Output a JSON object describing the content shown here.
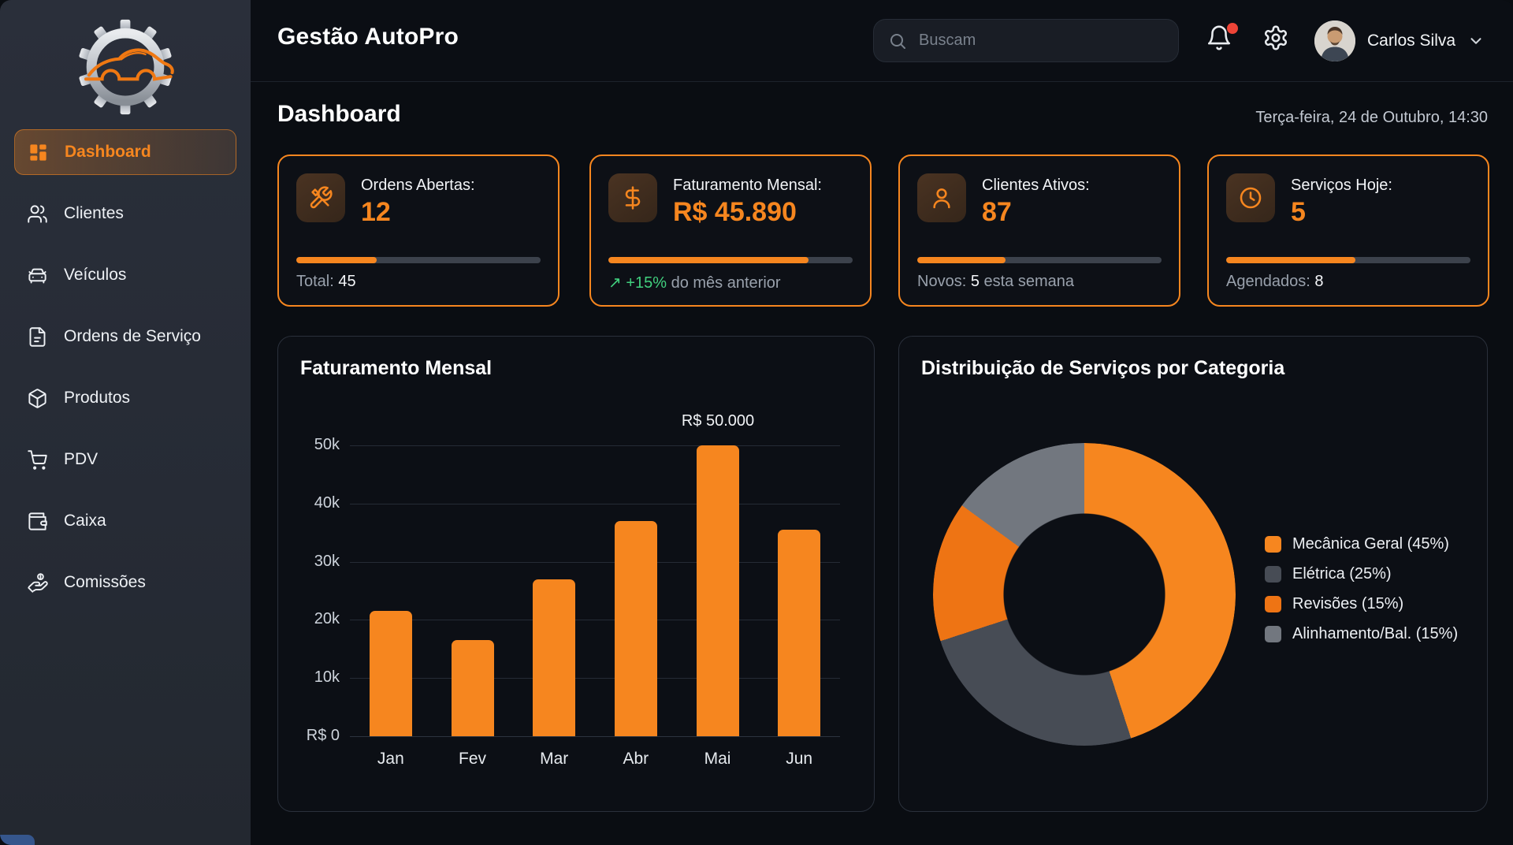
{
  "app": {
    "title": "Gestão AutoPro"
  },
  "topbar": {
    "search_placeholder": "Buscam",
    "user_name": "Carlos Silva",
    "icons": [
      "bell-icon",
      "gear-icon",
      "chevron-down-icon"
    ],
    "notification_dot_color": "#ee4437"
  },
  "sidebar": {
    "logo": "gear-car-logo",
    "items": [
      {
        "label": "Dashboard",
        "icon": "dashboard-grid-icon",
        "active": true
      },
      {
        "label": "Clientes",
        "icon": "users-icon",
        "active": false
      },
      {
        "label": "Veículos",
        "icon": "car-icon",
        "active": false
      },
      {
        "label": "Ordens de Serviço",
        "icon": "file-text-icon",
        "active": false
      },
      {
        "label": "Produtos",
        "icon": "package-icon",
        "active": false
      },
      {
        "label": "PDV",
        "icon": "shopping-cart-icon",
        "active": false
      },
      {
        "label": "Caixa",
        "icon": "wallet-icon",
        "active": false
      },
      {
        "label": "Comissões",
        "icon": "hand-coins-icon",
        "active": false
      }
    ]
  },
  "page": {
    "title": "Dashboard",
    "datetime": "Terça-feira, 24 de Outubro, 14:30"
  },
  "colors": {
    "accent_orange": "#f6861f",
    "green": "#41d07e",
    "card_border": "#f6861f",
    "sidebar_bg": "#262b35",
    "main_bg": "#0a0d12"
  },
  "stats": [
    {
      "label": "Ordens Abertas:",
      "value": "12",
      "icon": "tools-icon",
      "progress_pct": 33,
      "footer": {
        "prefix": "Total:",
        "highlight": "45",
        "suffix": ""
      }
    },
    {
      "label": "Faturamento Mensal:",
      "value": "R$ 45.890",
      "icon": "dollar-icon",
      "progress_pct": 82,
      "footer": {
        "trend": "↗ +15%",
        "suffix": "do mês anterior"
      }
    },
    {
      "label": "Clientes Ativos:",
      "value": "87",
      "icon": "user-icon",
      "progress_pct": 36,
      "footer": {
        "prefix": "Novos:",
        "highlight": "5",
        "suffix": "esta semana"
      }
    },
    {
      "label": "Serviços Hoje:",
      "value": "5",
      "icon": "clock-icon",
      "progress_pct": 53,
      "footer": {
        "prefix": "Agendados:",
        "highlight": "8",
        "suffix": ""
      }
    }
  ],
  "chart_data": [
    {
      "type": "bar",
      "title": "Faturamento Mensal",
      "categories": [
        "Jan",
        "Fev",
        "Mar",
        "Abr",
        "Mai",
        "Jun"
      ],
      "values": [
        21500,
        16500,
        27000,
        37000,
        50000,
        35500
      ],
      "xlabel": "",
      "ylabel": "R$",
      "ylim": [
        0,
        50000
      ],
      "y_ticks": [
        "50k",
        "40k",
        "30k",
        "20k",
        "10k",
        "R$ 0"
      ],
      "grid": true,
      "bar_color": "#f6861f",
      "annotation": {
        "label": "R$ 50.000",
        "category": "Mai",
        "value": 50000
      }
    },
    {
      "type": "pie",
      "donut": true,
      "title": "Distribuição de Serviços por Categoria",
      "legend_position": "right",
      "slices": [
        {
          "label": "Mecânica Geral (45%)",
          "value": 45,
          "color": "#f6861f"
        },
        {
          "label": "Elétrica (25%)",
          "value": 25,
          "color": "#474c55"
        },
        {
          "label": "Revisões (15%)",
          "value": 15,
          "color": "#ee7414"
        },
        {
          "label": "Alinhamento/Bal. (15%)",
          "value": 15,
          "color": "#72777f"
        }
      ]
    }
  ]
}
